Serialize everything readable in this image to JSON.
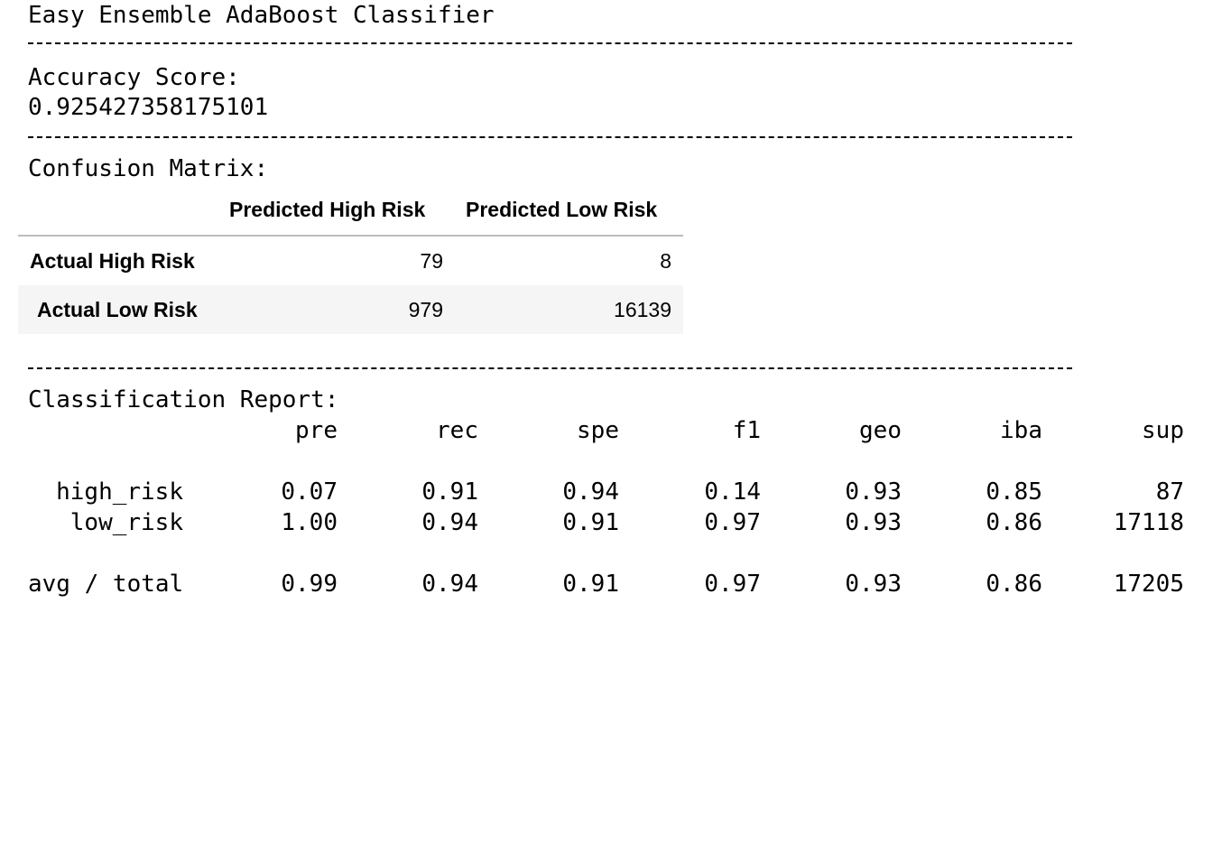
{
  "title": "Easy Ensemble AdaBoost Classifier",
  "divider": "-------------------------------------------------------------------------------------",
  "accuracy": {
    "label": "Accuracy Score:",
    "value": "0.925427358175101"
  },
  "confusion": {
    "label": "Confusion Matrix:",
    "columns": [
      "Predicted High Risk",
      "Predicted Low Risk"
    ],
    "rows": [
      {
        "label": "Actual High Risk",
        "values": [
          "79",
          "8"
        ]
      },
      {
        "label": "Actual Low Risk",
        "values": [
          "979",
          "16139"
        ]
      }
    ]
  },
  "report": {
    "label": "Classification Report:",
    "headers": [
      "pre",
      "rec",
      "spe",
      "f1",
      "geo",
      "iba",
      "sup"
    ],
    "rows": [
      {
        "label": "high_risk",
        "values": [
          "0.07",
          "0.91",
          "0.94",
          "0.14",
          "0.93",
          "0.85",
          "87"
        ]
      },
      {
        "label": "low_risk",
        "values": [
          "1.00",
          "0.94",
          "0.91",
          "0.97",
          "0.93",
          "0.86",
          "17118"
        ]
      },
      {
        "label": "avg / total",
        "values": [
          "0.99",
          "0.94",
          "0.91",
          "0.97",
          "0.93",
          "0.86",
          "17205"
        ]
      }
    ]
  }
}
